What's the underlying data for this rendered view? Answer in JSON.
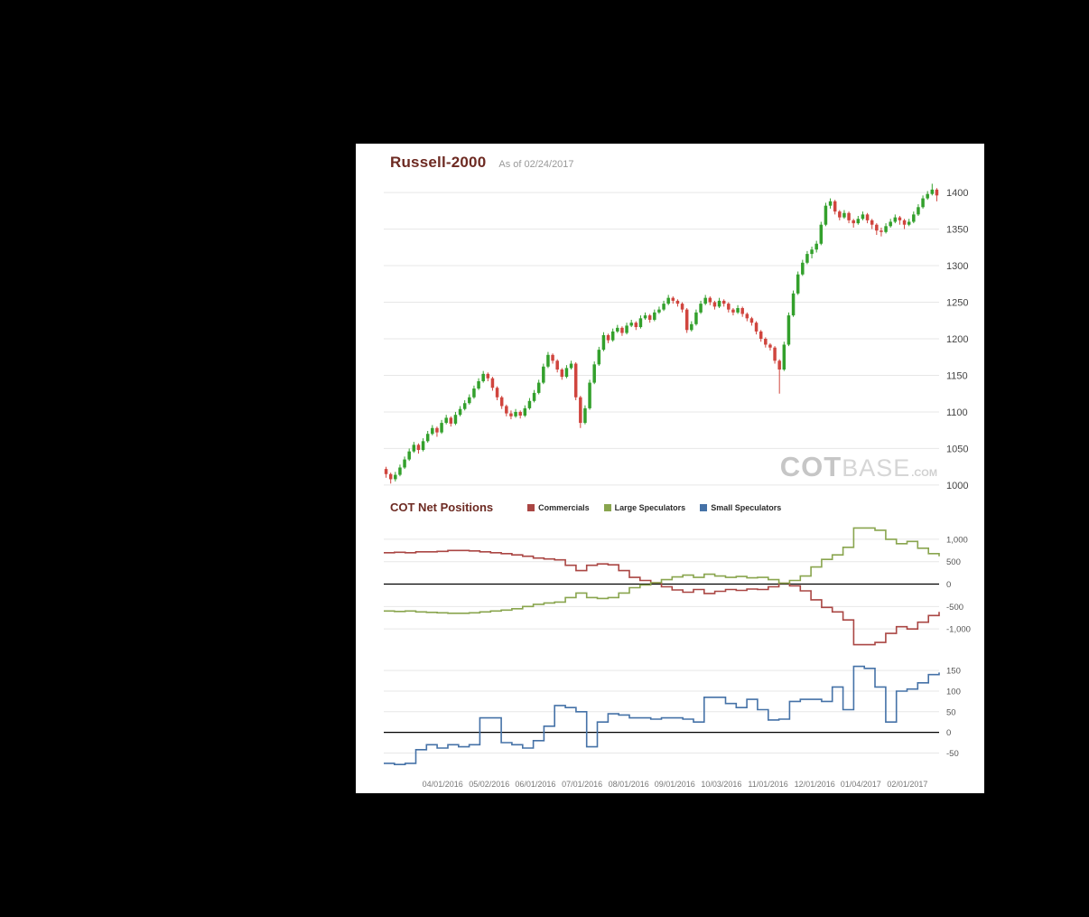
{
  "colors": {
    "background": "#000000",
    "panel": "#ffffff",
    "title": "#6d2a22",
    "grid": "#e7e7e7",
    "zero_line": "#000000"
  },
  "header": {
    "title": "Russell-2000",
    "as_of": "As of 02/24/2017"
  },
  "cot_section": {
    "title": "COT Net Positions",
    "legend": [
      {
        "label": "Commercials",
        "color": "#AA4643"
      },
      {
        "label": "Large Speculators",
        "color": "#89A54E"
      },
      {
        "label": "Small Speculators",
        "color": "#4572A7"
      }
    ]
  },
  "watermark": {
    "cot": "COT",
    "base": "BASE",
    "com": ".COM"
  },
  "x_axis": {
    "labels": [
      "04/01/2016",
      "05/02/2016",
      "06/01/2016",
      "07/01/2016",
      "08/01/2016",
      "09/01/2016",
      "10/03/2016",
      "11/01/2016",
      "12/01/2016",
      "01/04/2017",
      "02/01/2017"
    ],
    "fracs": [
      0.106,
      0.19,
      0.273,
      0.357,
      0.441,
      0.524,
      0.608,
      0.692,
      0.776,
      0.859,
      0.943
    ]
  },
  "chart_data": [
    {
      "type": "candlestick",
      "title": "Russell-2000",
      "as_of_date": "02/24/2017",
      "up_color": "#33a02c",
      "down_color": "#d0453e",
      "ylim": [
        990,
        1410
      ],
      "y_ticks": [
        1000,
        1050,
        1100,
        1150,
        1200,
        1250,
        1300,
        1350,
        1400
      ],
      "candles": [
        [
          1022,
          1025,
          1010,
          1015
        ],
        [
          1015,
          1017,
          1002,
          1008
        ],
        [
          1008,
          1018,
          1005,
          1014
        ],
        [
          1014,
          1028,
          1012,
          1024
        ],
        [
          1024,
          1039,
          1022,
          1035
        ],
        [
          1035,
          1050,
          1033,
          1046
        ],
        [
          1046,
          1059,
          1044,
          1055
        ],
        [
          1055,
          1057,
          1043,
          1048
        ],
        [
          1048,
          1064,
          1046,
          1060
        ],
        [
          1060,
          1074,
          1058,
          1070
        ],
        [
          1070,
          1082,
          1068,
          1078
        ],
        [
          1078,
          1080,
          1066,
          1072
        ],
        [
          1072,
          1089,
          1070,
          1085
        ],
        [
          1085,
          1096,
          1083,
          1092
        ],
        [
          1092,
          1094,
          1080,
          1084
        ],
        [
          1084,
          1100,
          1082,
          1096
        ],
        [
          1096,
          1108,
          1094,
          1104
        ],
        [
          1104,
          1116,
          1102,
          1112
        ],
        [
          1112,
          1124,
          1110,
          1120
        ],
        [
          1120,
          1136,
          1118,
          1132
        ],
        [
          1132,
          1146,
          1130,
          1142
        ],
        [
          1142,
          1156,
          1140,
          1152
        ],
        [
          1152,
          1154,
          1142,
          1146
        ],
        [
          1146,
          1148,
          1129,
          1133
        ],
        [
          1133,
          1135,
          1116,
          1120
        ],
        [
          1120,
          1122,
          1104,
          1108
        ],
        [
          1108,
          1110,
          1094,
          1098
        ],
        [
          1098,
          1102,
          1090,
          1094
        ],
        [
          1094,
          1104,
          1092,
          1100
        ],
        [
          1100,
          1102,
          1091,
          1095
        ],
        [
          1095,
          1109,
          1093,
          1105
        ],
        [
          1105,
          1119,
          1103,
          1115
        ],
        [
          1115,
          1130,
          1113,
          1126
        ],
        [
          1126,
          1144,
          1124,
          1140
        ],
        [
          1140,
          1166,
          1138,
          1162
        ],
        [
          1162,
          1182,
          1160,
          1178
        ],
        [
          1178,
          1180,
          1166,
          1170
        ],
        [
          1170,
          1172,
          1154,
          1158
        ],
        [
          1158,
          1160,
          1144,
          1148
        ],
        [
          1148,
          1164,
          1146,
          1160
        ],
        [
          1160,
          1170,
          1158,
          1166
        ],
        [
          1166,
          1168,
          1116,
          1120
        ],
        [
          1120,
          1122,
          1078,
          1085
        ],
        [
          1085,
          1109,
          1083,
          1105
        ],
        [
          1105,
          1144,
          1103,
          1140
        ],
        [
          1140,
          1169,
          1138,
          1165
        ],
        [
          1165,
          1189,
          1163,
          1185
        ],
        [
          1185,
          1209,
          1183,
          1205
        ],
        [
          1205,
          1207,
          1194,
          1198
        ],
        [
          1198,
          1214,
          1196,
          1210
        ],
        [
          1210,
          1219,
          1208,
          1215
        ],
        [
          1215,
          1217,
          1204,
          1208
        ],
        [
          1208,
          1222,
          1206,
          1218
        ],
        [
          1218,
          1226,
          1216,
          1222
        ],
        [
          1222,
          1224,
          1212,
          1216
        ],
        [
          1216,
          1232,
          1214,
          1228
        ],
        [
          1228,
          1236,
          1226,
          1232
        ],
        [
          1232,
          1234,
          1222,
          1226
        ],
        [
          1226,
          1240,
          1224,
          1236
        ],
        [
          1236,
          1244,
          1234,
          1240
        ],
        [
          1240,
          1252,
          1238,
          1248
        ],
        [
          1248,
          1260,
          1246,
          1256
        ],
        [
          1256,
          1258,
          1248,
          1252
        ],
        [
          1252,
          1254,
          1244,
          1248
        ],
        [
          1248,
          1250,
          1236,
          1240
        ],
        [
          1240,
          1242,
          1208,
          1212
        ],
        [
          1212,
          1224,
          1210,
          1220
        ],
        [
          1220,
          1240,
          1218,
          1236
        ],
        [
          1236,
          1252,
          1234,
          1248
        ],
        [
          1248,
          1260,
          1246,
          1256
        ],
        [
          1256,
          1258,
          1246,
          1250
        ],
        [
          1250,
          1252,
          1240,
          1244
        ],
        [
          1244,
          1256,
          1242,
          1252
        ],
        [
          1252,
          1254,
          1244,
          1248
        ],
        [
          1248,
          1250,
          1236,
          1240
        ],
        [
          1240,
          1242,
          1232,
          1236
        ],
        [
          1236,
          1246,
          1234,
          1242
        ],
        [
          1242,
          1244,
          1230,
          1234
        ],
        [
          1234,
          1236,
          1224,
          1228
        ],
        [
          1228,
          1230,
          1218,
          1222
        ],
        [
          1222,
          1224,
          1206,
          1210
        ],
        [
          1210,
          1212,
          1196,
          1200
        ],
        [
          1200,
          1202,
          1188,
          1192
        ],
        [
          1192,
          1194,
          1184,
          1188
        ],
        [
          1188,
          1190,
          1166,
          1170
        ],
        [
          1170,
          1172,
          1125,
          1158
        ],
        [
          1158,
          1196,
          1156,
          1192
        ],
        [
          1192,
          1236,
          1190,
          1232
        ],
        [
          1232,
          1266,
          1230,
          1262
        ],
        [
          1262,
          1292,
          1260,
          1288
        ],
        [
          1288,
          1308,
          1286,
          1304
        ],
        [
          1304,
          1320,
          1302,
          1316
        ],
        [
          1316,
          1326,
          1310,
          1322
        ],
        [
          1322,
          1334,
          1318,
          1330
        ],
        [
          1330,
          1360,
          1328,
          1356
        ],
        [
          1356,
          1386,
          1354,
          1382
        ],
        [
          1382,
          1392,
          1378,
          1388
        ],
        [
          1388,
          1390,
          1370,
          1374
        ],
        [
          1374,
          1376,
          1362,
          1366
        ],
        [
          1366,
          1376,
          1364,
          1372
        ],
        [
          1372,
          1374,
          1358,
          1362
        ],
        [
          1362,
          1364,
          1352,
          1358
        ],
        [
          1358,
          1368,
          1356,
          1364
        ],
        [
          1364,
          1374,
          1362,
          1370
        ],
        [
          1370,
          1372,
          1358,
          1362
        ],
        [
          1362,
          1364,
          1350,
          1356
        ],
        [
          1356,
          1358,
          1342,
          1348
        ],
        [
          1348,
          1352,
          1340,
          1346
        ],
        [
          1346,
          1358,
          1344,
          1354
        ],
        [
          1354,
          1364,
          1352,
          1360
        ],
        [
          1360,
          1370,
          1358,
          1366
        ],
        [
          1366,
          1368,
          1356,
          1362
        ],
        [
          1362,
          1364,
          1350,
          1356
        ],
        [
          1356,
          1364,
          1354,
          1360
        ],
        [
          1360,
          1374,
          1358,
          1370
        ],
        [
          1370,
          1384,
          1368,
          1380
        ],
        [
          1380,
          1396,
          1378,
          1392
        ],
        [
          1392,
          1402,
          1390,
          1398
        ],
        [
          1398,
          1412,
          1396,
          1404
        ],
        [
          1404,
          1406,
          1388,
          1396
        ]
      ]
    },
    {
      "type": "line-step",
      "title": "COT Net Positions",
      "ylim": [
        -1500,
        1400
      ],
      "y_ticks": [
        {
          "value": 1000,
          "label": "1,000"
        },
        {
          "value": 500,
          "label": "500"
        },
        {
          "value": 0,
          "label": "0"
        },
        {
          "value": -500,
          "label": "-500"
        },
        {
          "value": -1000,
          "label": "-1,000"
        }
      ],
      "series": [
        {
          "name": "Commercials",
          "color": "#AA4643",
          "values": [
            700,
            710,
            700,
            720,
            720,
            730,
            750,
            750,
            740,
            720,
            700,
            680,
            650,
            620,
            580,
            560,
            540,
            420,
            300,
            420,
            450,
            430,
            300,
            150,
            80,
            30,
            -60,
            -130,
            -180,
            -120,
            -210,
            -160,
            -120,
            -140,
            -110,
            -120,
            -60,
            20,
            -40,
            -150,
            -350,
            -520,
            -620,
            -800,
            -1350,
            -1350,
            -1300,
            -1100,
            -950,
            -1000,
            -850,
            -700,
            -620
          ]
        },
        {
          "name": "Large Speculators",
          "color": "#89A54E",
          "values": [
            -600,
            -610,
            -600,
            -620,
            -630,
            -640,
            -650,
            -650,
            -640,
            -620,
            -600,
            -580,
            -550,
            -500,
            -450,
            -420,
            -400,
            -300,
            -200,
            -300,
            -320,
            -300,
            -200,
            -80,
            -20,
            30,
            100,
            160,
            200,
            150,
            220,
            180,
            150,
            170,
            140,
            150,
            100,
            20,
            80,
            180,
            380,
            550,
            650,
            820,
            1250,
            1250,
            1200,
            1000,
            900,
            950,
            800,
            680,
            620
          ]
        }
      ]
    },
    {
      "type": "line-step",
      "title": "Small Speculators Net Positions",
      "ylim": [
        -95,
        170
      ],
      "y_ticks": [
        {
          "value": 150,
          "label": "150"
        },
        {
          "value": 100,
          "label": "100"
        },
        {
          "value": 50,
          "label": "50"
        },
        {
          "value": 0,
          "label": "0"
        },
        {
          "value": -50,
          "label": "-50"
        }
      ],
      "series": [
        {
          "name": "Small Speculators",
          "color": "#4572A7",
          "values": [
            -75,
            -78,
            -75,
            -42,
            -30,
            -38,
            -30,
            -35,
            -30,
            35,
            35,
            -25,
            -30,
            -38,
            -20,
            15,
            65,
            60,
            50,
            -35,
            25,
            45,
            42,
            35,
            35,
            32,
            35,
            35,
            32,
            25,
            85,
            85,
            70,
            60,
            80,
            55,
            30,
            32,
            75,
            80,
            80,
            75,
            110,
            55,
            160,
            155,
            110,
            25,
            100,
            105,
            120,
            140,
            145
          ]
        }
      ]
    }
  ]
}
